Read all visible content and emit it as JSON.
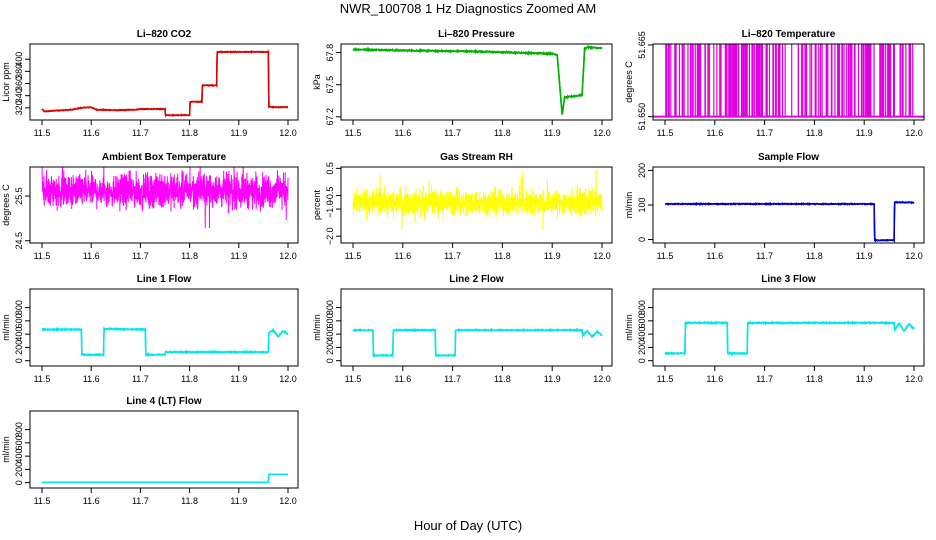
{
  "title": "NWR_100708  1 Hz Diagnostics Zoomed AM",
  "xlabel": "Hour of Day (UTC)",
  "chart_data": [
    {
      "type": "line",
      "name": "li820-co2",
      "title": "Li–820 CO2",
      "ylabel": "Licor ppm",
      "color": "#dd0000",
      "xlim": [
        11.5,
        12.0
      ],
      "xticks": [
        "11.5",
        "11.6",
        "11.7",
        "11.8",
        "11.9",
        "12.0"
      ],
      "ylim": [
        300,
        425
      ],
      "yticks": [
        {
          "v": 320,
          "t": "320"
        },
        {
          "v": 340,
          "t": "340"
        },
        {
          "v": 360,
          "t": "360"
        },
        {
          "v": 380,
          "t": "380"
        },
        {
          "v": 400,
          "t": "400"
        }
      ],
      "noise": 0.6,
      "series": [
        [
          11.5,
          318
        ],
        [
          11.505,
          314
        ],
        [
          11.52,
          315
        ],
        [
          11.56,
          317
        ],
        [
          11.58,
          320
        ],
        [
          11.6,
          321
        ],
        [
          11.61,
          317
        ],
        [
          11.65,
          316
        ],
        [
          11.69,
          317
        ],
        [
          11.7,
          318
        ],
        [
          11.75,
          318
        ],
        [
          11.751,
          308
        ],
        [
          11.8,
          308
        ],
        [
          11.801,
          330
        ],
        [
          11.825,
          330
        ],
        [
          11.826,
          357
        ],
        [
          11.855,
          357
        ],
        [
          11.856,
          412
        ],
        [
          11.93,
          412
        ],
        [
          11.96,
          412
        ],
        [
          11.961,
          322
        ],
        [
          11.97,
          321
        ],
        [
          12.0,
          321
        ]
      ]
    },
    {
      "type": "line",
      "name": "li820-pressure",
      "title": "Li–820 Pressure",
      "ylabel": "kPa",
      "color": "#00b000",
      "xlim": [
        11.5,
        12.0
      ],
      "xticks": [
        "11.5",
        "11.6",
        "11.7",
        "11.8",
        "11.9",
        "12.0"
      ],
      "ylim": [
        67.17,
        67.88
      ],
      "yticks": [
        {
          "v": 67.2,
          "t": "67.2"
        },
        {
          "v": 67.5,
          "t": "67.5"
        },
        {
          "v": 67.8,
          "t": "67.8"
        }
      ],
      "noise": 0.006,
      "series": [
        [
          11.5,
          67.83
        ],
        [
          11.6,
          67.82
        ],
        [
          11.75,
          67.81
        ],
        [
          11.9,
          67.79
        ],
        [
          11.91,
          67.78
        ],
        [
          11.92,
          67.22
        ],
        [
          11.925,
          67.38
        ],
        [
          11.955,
          67.4
        ],
        [
          11.96,
          67.4
        ],
        [
          11.965,
          67.83
        ],
        [
          11.97,
          67.85
        ],
        [
          12.0,
          67.84
        ]
      ]
    },
    {
      "type": "spikes",
      "name": "li820-temperature",
      "title": "Li–820 Temperature",
      "ylabel": "degrees C",
      "color": "#e000e0",
      "xlim": [
        11.5,
        12.0
      ],
      "xticks": [
        "11.5",
        "11.6",
        "11.7",
        "11.8",
        "11.9",
        "12.0"
      ],
      "ylim": [
        51.6493,
        51.6652
      ],
      "yticks": [
        {
          "v": 51.65,
          "t": "51.650"
        },
        {
          "v": 51.665,
          "t": "51.665"
        }
      ],
      "series": [
        [
          11.5,
          51.65
        ],
        [
          12.0,
          51.65
        ]
      ]
    },
    {
      "type": "noise",
      "name": "ambient-box-temperature",
      "title": "Ambient Box Temperature",
      "ylabel": "degrees C",
      "color": "#ff00ff",
      "xlim": [
        11.5,
        12.0
      ],
      "xticks": [
        "11.5",
        "11.6",
        "11.7",
        "11.8",
        "11.9",
        "12.0"
      ],
      "ylim": [
        24.45,
        26.15
      ],
      "yticks": [
        {
          "v": 24.5,
          "t": "24.5"
        },
        {
          "v": 25.5,
          "t": "25.5"
        }
      ],
      "mean": 25.62,
      "spread": 0.55,
      "series": [
        [
          11.5,
          25.62
        ],
        [
          12.0,
          25.62
        ]
      ]
    },
    {
      "type": "noise",
      "name": "gas-stream-rh",
      "title": "Gas Stream RH",
      "ylabel": "percent",
      "color": "#ffff00",
      "xlim": [
        11.5,
        12.0
      ],
      "xticks": [
        "11.5",
        "11.6",
        "11.7",
        "11.8",
        "11.9",
        "12.0"
      ],
      "ylim": [
        -2.25,
        0.55
      ],
      "yticks": [
        {
          "v": -2.0,
          "t": "−2.0"
        },
        {
          "v": -1.0,
          "t": "−1.0"
        },
        {
          "v": -0.5,
          "t": "−0.5"
        },
        {
          "v": 0.5,
          "t": "0.5"
        }
      ],
      "mean": -0.75,
      "spread": 0.7,
      "series": [
        [
          11.5,
          -0.75
        ],
        [
          12.0,
          -0.75
        ]
      ]
    },
    {
      "type": "line",
      "name": "sample-flow",
      "title": "Sample Flow",
      "ylabel": "ml/min",
      "color": "#0000cc",
      "xlim": [
        11.5,
        12.0
      ],
      "xticks": [
        "11.5",
        "11.6",
        "11.7",
        "11.8",
        "11.9",
        "12.0"
      ],
      "ylim": [
        -10,
        210
      ],
      "yticks": [
        {
          "v": 0,
          "t": "0"
        },
        {
          "v": 100,
          "t": "100"
        },
        {
          "v": 200,
          "t": "200"
        }
      ],
      "noise": 1.2,
      "series": [
        [
          11.5,
          103
        ],
        [
          11.9,
          103
        ],
        [
          11.92,
          103
        ],
        [
          11.921,
          -2
        ],
        [
          11.96,
          -2
        ],
        [
          11.961,
          108
        ],
        [
          12.0,
          107
        ]
      ]
    },
    {
      "type": "line",
      "name": "line-1-flow",
      "title": "Line 1 Flow",
      "ylabel": "ml/min",
      "color": "#00e5ee",
      "xlim": [
        11.5,
        12.0
      ],
      "xticks": [
        "11.5",
        "11.6",
        "11.7",
        "11.8",
        "11.9",
        "12.0"
      ],
      "ylim": [
        -80,
        1080
      ],
      "yticks": [
        {
          "v": 0,
          "t": "0"
        },
        {
          "v": 200,
          "t": "200"
        },
        {
          "v": 400,
          "t": "400"
        },
        {
          "v": 600,
          "t": "600"
        },
        {
          "v": 800,
          "t": "800"
        }
      ],
      "noise": 8,
      "series": [
        [
          11.5,
          470
        ],
        [
          11.58,
          470
        ],
        [
          11.581,
          90
        ],
        [
          11.625,
          90
        ],
        [
          11.626,
          480
        ],
        [
          11.71,
          470
        ],
        [
          11.711,
          90
        ],
        [
          11.75,
          90
        ],
        [
          11.751,
          130
        ],
        [
          11.96,
          130
        ],
        [
          11.961,
          420
        ],
        [
          11.97,
          460
        ],
        [
          11.98,
          360
        ],
        [
          11.99,
          450
        ],
        [
          12.0,
          400
        ]
      ]
    },
    {
      "type": "line",
      "name": "line-2-flow",
      "title": "Line 2 Flow",
      "ylabel": "ml/min",
      "color": "#00e5ee",
      "xlim": [
        11.5,
        12.0
      ],
      "xticks": [
        "11.5",
        "11.6",
        "11.7",
        "11.8",
        "11.9",
        "12.0"
      ],
      "ylim": [
        -80,
        1080
      ],
      "yticks": [
        {
          "v": 0,
          "t": "0"
        },
        {
          "v": 200,
          "t": "200"
        },
        {
          "v": 400,
          "t": "400"
        },
        {
          "v": 600,
          "t": "600"
        },
        {
          "v": 800,
          "t": "800"
        }
      ],
      "noise": 8,
      "series": [
        [
          11.5,
          460
        ],
        [
          11.54,
          460
        ],
        [
          11.541,
          80
        ],
        [
          11.58,
          80
        ],
        [
          11.581,
          460
        ],
        [
          11.665,
          460
        ],
        [
          11.666,
          80
        ],
        [
          11.705,
          80
        ],
        [
          11.706,
          460
        ],
        [
          11.96,
          460
        ],
        [
          11.961,
          380
        ],
        [
          11.97,
          450
        ],
        [
          11.98,
          360
        ],
        [
          11.99,
          440
        ],
        [
          12.0,
          380
        ]
      ]
    },
    {
      "type": "line",
      "name": "line-3-flow",
      "title": "Line 3 Flow",
      "ylabel": "ml/min",
      "color": "#00e5ee",
      "xlim": [
        11.5,
        12.0
      ],
      "xticks": [
        "11.5",
        "11.6",
        "11.7",
        "11.8",
        "11.9",
        "12.0"
      ],
      "ylim": [
        -80,
        1080
      ],
      "yticks": [
        {
          "v": 0,
          "t": "0"
        },
        {
          "v": 200,
          "t": "200"
        },
        {
          "v": 400,
          "t": "400"
        },
        {
          "v": 600,
          "t": "600"
        },
        {
          "v": 800,
          "t": "800"
        }
      ],
      "noise": 9,
      "series": [
        [
          11.5,
          110
        ],
        [
          11.54,
          110
        ],
        [
          11.541,
          570
        ],
        [
          11.625,
          570
        ],
        [
          11.626,
          110
        ],
        [
          11.665,
          110
        ],
        [
          11.666,
          570
        ],
        [
          11.96,
          570
        ],
        [
          11.961,
          460
        ],
        [
          11.97,
          560
        ],
        [
          11.98,
          450
        ],
        [
          11.99,
          550
        ],
        [
          12.0,
          480
        ]
      ]
    },
    {
      "type": "line",
      "name": "line-4-lt-flow",
      "title": "Line 4 (LT) Flow",
      "ylabel": "ml/min",
      "color": "#00e5ee",
      "xlim": [
        11.5,
        12.0
      ],
      "xticks": [
        "11.5",
        "11.6",
        "11.7",
        "11.8",
        "11.9",
        "12.0"
      ],
      "ylim": [
        -80,
        1080
      ],
      "yticks": [
        {
          "v": 0,
          "t": "0"
        },
        {
          "v": 200,
          "t": "200"
        },
        {
          "v": 400,
          "t": "400"
        },
        {
          "v": 600,
          "t": "600"
        },
        {
          "v": 800,
          "t": "800"
        }
      ],
      "noise": 0,
      "series": [
        [
          11.5,
          5
        ],
        [
          11.96,
          5
        ],
        [
          11.961,
          125
        ],
        [
          12.0,
          125
        ]
      ]
    }
  ]
}
